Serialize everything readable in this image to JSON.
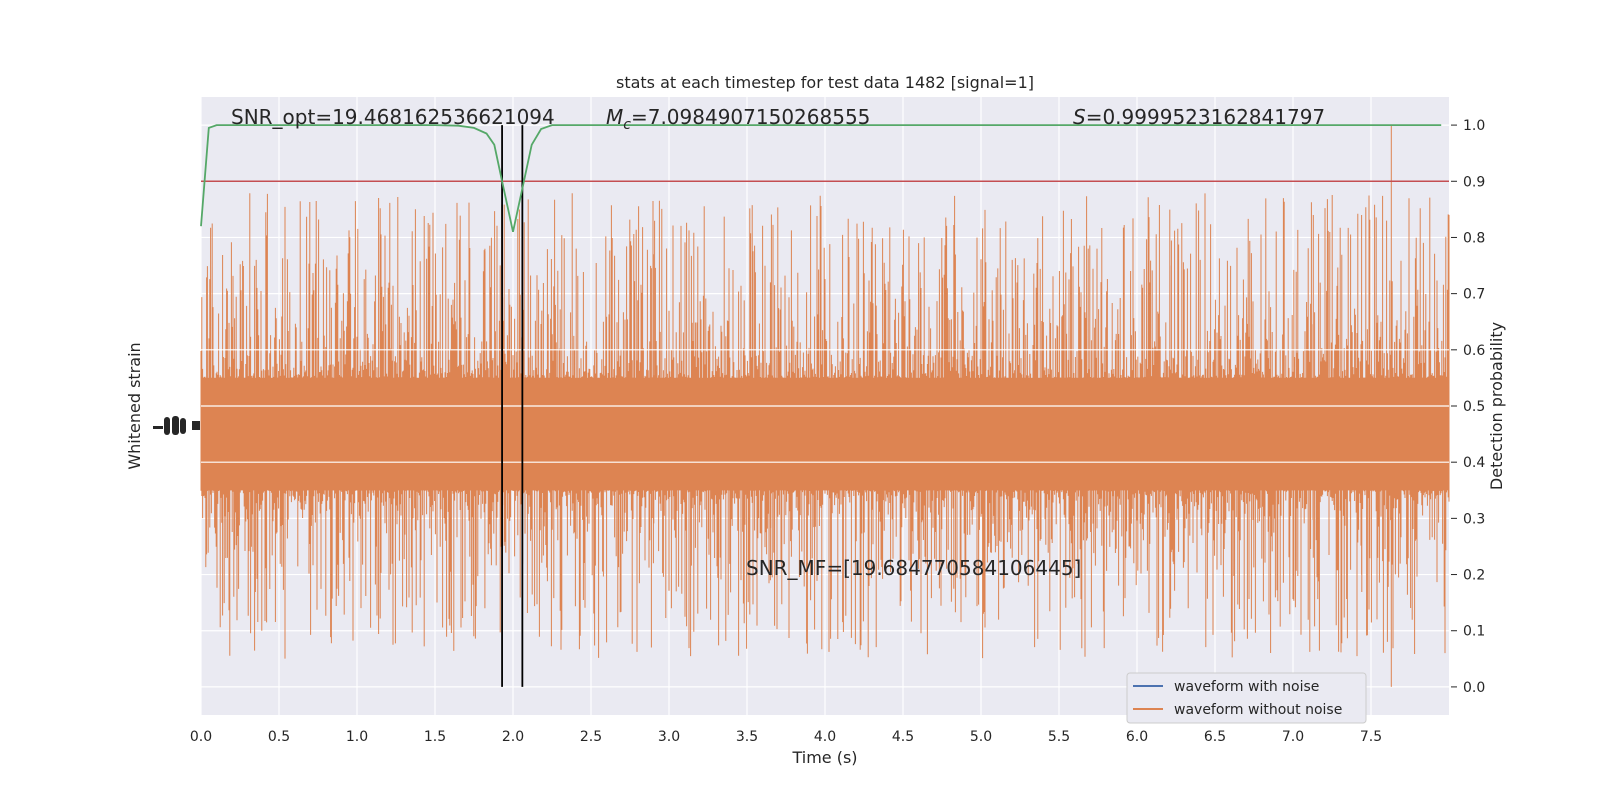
{
  "chart_data": {
    "type": "line",
    "title": "stats at each timestep for test data 1482 [signal=1]",
    "xlabel": "Time (s)",
    "ylabel_left": "Whitened strain",
    "ylabel_right": "Detection probability",
    "xlim": [
      0.0,
      8.0
    ],
    "ylim_right": [
      -0.05,
      1.05
    ],
    "x_ticks": [
      "0.0",
      "0.5",
      "1.0",
      "1.5",
      "2.0",
      "2.5",
      "3.0",
      "3.5",
      "4.0",
      "4.5",
      "5.0",
      "5.5",
      "6.0",
      "6.5",
      "7.0",
      "7.5"
    ],
    "y_ticks_right": [
      "0.0",
      "0.1",
      "0.2",
      "0.3",
      "0.4",
      "0.5",
      "0.6",
      "0.7",
      "0.8",
      "0.9",
      "1.0"
    ],
    "grid": true,
    "legend_position": "lower-right",
    "annotations": {
      "snr_opt": "SNR_opt=19.468162536621094",
      "mc_symbol": "M",
      "mc_sub": "c",
      "mc_value": "=7.0984907150268555",
      "s_symbol": "S",
      "s_value": "=0.9999523162841797",
      "snr_mf": "SNR_MF=[19.684770584106445]"
    },
    "threshold": 0.9,
    "vertical_lines": [
      1.93,
      2.06
    ],
    "series": [
      {
        "name": "waveform with noise",
        "color": "#4c72b0"
      },
      {
        "name": "waveform without noise",
        "color": "#dd8452",
        "band": {
          "center": 0.45,
          "dense_half_width": 0.1,
          "spikes": [
            {
              "x": 1.82,
              "low": 0.14,
              "high": 0.78
            },
            {
              "x": 1.93,
              "low": 0.15,
              "high": 0.74
            },
            {
              "x": 2.9,
              "low": 0.22,
              "high": 0.77
            },
            {
              "x": 3.65,
              "low": 0.19,
              "high": 0.72
            },
            {
              "x": 4.6,
              "low": 0.21,
              "high": 0.79
            },
            {
              "x": 5.2,
              "low": 0.23,
              "high": 0.76
            },
            {
              "x": 6.22,
              "low": 0.24,
              "high": 0.75
            },
            {
              "x": 7.13,
              "low": 0.23,
              "high": 0.84
            },
            {
              "x": 7.44,
              "low": 0.2,
              "high": 0.84
            },
            {
              "x": 7.63,
              "low": 0.0,
              "high": 1.0
            }
          ]
        }
      },
      {
        "name": "",
        "color": "#55a868",
        "x": [
          0.0,
          0.05,
          0.1,
          0.3,
          1.5,
          1.65,
          1.75,
          1.83,
          1.88,
          1.93,
          2.0,
          2.07,
          2.12,
          2.18,
          2.25,
          2.4,
          7.95
        ],
        "y": [
          0.82,
          0.995,
          1.0,
          1.0,
          1.0,
          0.999,
          0.995,
          0.985,
          0.965,
          0.9,
          0.81,
          0.9,
          0.965,
          0.993,
          1.0,
          1.0,
          1.0
        ]
      }
    ]
  }
}
